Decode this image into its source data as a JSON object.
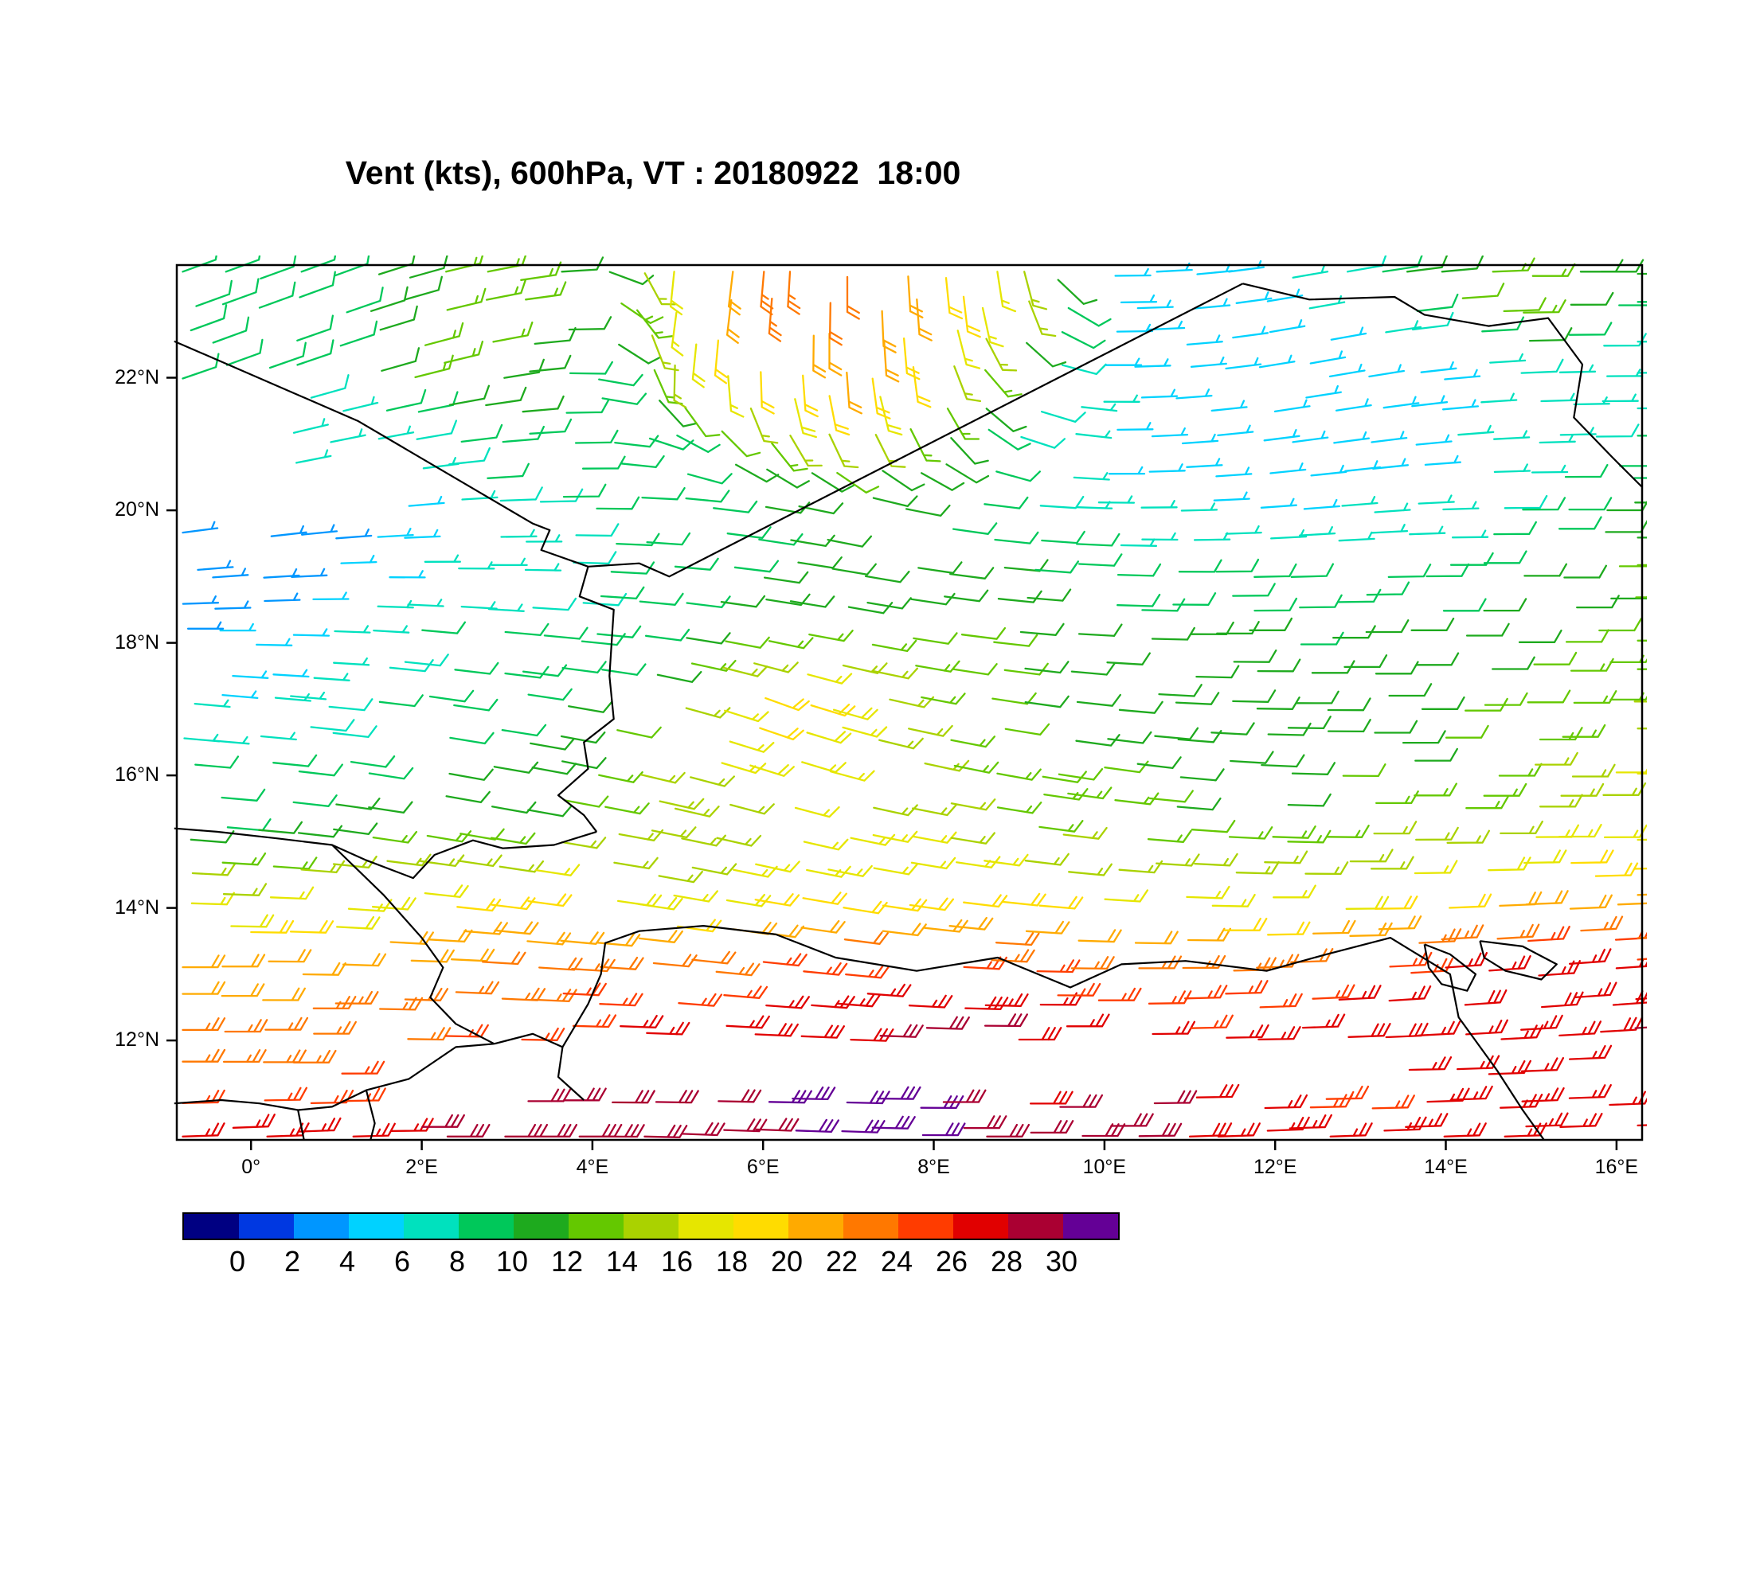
{
  "title": "Vent (kts), 600hPa, VT : 20180922  18:00",
  "chart_data": {
    "type": "wind_barbs",
    "title": "Vent (kts), 600hPa, VT : 20180922  18:00",
    "variable": "Vent",
    "units": "kts",
    "level": "600hPa",
    "valid_time_label": "VT : 20180922  18:00",
    "x_axis": {
      "tick_labels": [
        "0°",
        "2°E",
        "4°E",
        "6°E",
        "8°E",
        "10°E",
        "12°E",
        "14°E",
        "16°E"
      ],
      "tick_lons": [
        0,
        2,
        4,
        6,
        8,
        10,
        12,
        14,
        16
      ],
      "lon_range": [
        -0.87,
        16.3
      ]
    },
    "y_axis": {
      "tick_labels": [
        "12°N",
        "14°N",
        "16°N",
        "18°N",
        "20°N",
        "22°N"
      ],
      "tick_lats": [
        12,
        14,
        16,
        18,
        20,
        22
      ],
      "lat_range": [
        10.5,
        23.7
      ]
    },
    "colorbar": {
      "tick_values": [
        0,
        2,
        4,
        6,
        8,
        10,
        12,
        14,
        16,
        18,
        20,
        22,
        24,
        26,
        28,
        30
      ],
      "segment_colors": [
        "#000082",
        "#0038e1",
        "#0096ff",
        "#00d2ff",
        "#00e1be",
        "#00c85a",
        "#1eaa1e",
        "#64c800",
        "#aad200",
        "#e6e600",
        "#ffdc00",
        "#ffaa00",
        "#ff7800",
        "#ff3c00",
        "#e10000",
        "#aa0032",
        "#640096"
      ]
    },
    "map_border_color": "#000000",
    "wind_field": {
      "lats": [
        23.2,
        22.2,
        21.2,
        20.2,
        19.2,
        18.2,
        17.2,
        16.2,
        15.2,
        14.2,
        13.2,
        12.4,
        11.6,
        10.7
      ],
      "lons": [
        0,
        1,
        2,
        3,
        4,
        5,
        6,
        7,
        8,
        9,
        10,
        11,
        12,
        13,
        14,
        15,
        16
      ],
      "speed_kts": [
        [
          8,
          8,
          12,
          14,
          10,
          18,
          24,
          22,
          20,
          16,
          6,
          4,
          6,
          8,
          12,
          14,
          10
        ],
        [
          8,
          10,
          14,
          12,
          8,
          16,
          20,
          22,
          18,
          10,
          6,
          5,
          4,
          4,
          6,
          8,
          6
        ],
        [
          null,
          6,
          8,
          10,
          8,
          10,
          14,
          16,
          12,
          8,
          6,
          4,
          4,
          5,
          6,
          6,
          8
        ],
        [
          null,
          null,
          6,
          8,
          8,
          8,
          10,
          10,
          10,
          8,
          6,
          6,
          5,
          6,
          6,
          8,
          10
        ],
        [
          3,
          4,
          6,
          6,
          8,
          8,
          10,
          10,
          10,
          10,
          8,
          8,
          8,
          8,
          8,
          10,
          12
        ],
        [
          4,
          6,
          8,
          8,
          8,
          10,
          12,
          12,
          12,
          12,
          10,
          10,
          10,
          10,
          10,
          12,
          12
        ],
        [
          6,
          8,
          8,
          10,
          10,
          14,
          20,
          18,
          12,
          12,
          10,
          10,
          10,
          10,
          12,
          12,
          14
        ],
        [
          8,
          8,
          10,
          10,
          12,
          16,
          18,
          16,
          14,
          12,
          12,
          10,
          10,
          12,
          12,
          14,
          16
        ],
        [
          10,
          12,
          12,
          12,
          14,
          14,
          16,
          16,
          16,
          14,
          14,
          12,
          12,
          14,
          14,
          16,
          16
        ],
        [
          16,
          16,
          18,
          18,
          18,
          16,
          18,
          18,
          18,
          18,
          16,
          16,
          16,
          16,
          18,
          20,
          20
        ],
        [
          20,
          20,
          22,
          22,
          22,
          22,
          24,
          24,
          24,
          24,
          22,
          22,
          22,
          24,
          26,
          26,
          26
        ],
        [
          22,
          24,
          24,
          24,
          26,
          26,
          28,
          28,
          28,
          28,
          26,
          26,
          26,
          28,
          28,
          28,
          28
        ],
        [
          24,
          24,
          null,
          null,
          null,
          null,
          null,
          null,
          null,
          null,
          null,
          null,
          null,
          null,
          26,
          26,
          null
        ],
        [
          26,
          26,
          28,
          28,
          28,
          28,
          30,
          30,
          30,
          28,
          28,
          28,
          26,
          26,
          26,
          26,
          26
        ]
      ],
      "direction_from_deg": [
        [
          70,
          70,
          75,
          80,
          90,
          190,
          185,
          180,
          175,
          170,
          90,
          85,
          80,
          80,
          85,
          90,
          90
        ],
        [
          70,
          72,
          75,
          80,
          95,
          185,
          182,
          178,
          172,
          120,
          90,
          85,
          80,
          80,
          85,
          88,
          90
        ],
        [
          75,
          78,
          80,
          85,
          90,
          120,
          150,
          160,
          150,
          110,
          90,
          85,
          82,
          82,
          85,
          88,
          90
        ],
        [
          80,
          82,
          85,
          88,
          90,
          95,
          100,
          105,
          100,
          95,
          90,
          88,
          85,
          85,
          88,
          90,
          90
        ],
        [
          85,
          88,
          90,
          90,
          92,
          95,
          98,
          100,
          98,
          95,
          92,
          90,
          88,
          88,
          90,
          90,
          90
        ],
        [
          90,
          92,
          95,
          95,
          95,
          98,
          100,
          100,
          98,
          95,
          92,
          90,
          90,
          90,
          90,
          90,
          90
        ],
        [
          95,
          95,
          98,
          98,
          100,
          105,
          110,
          105,
          100,
          98,
          95,
          92,
          90,
          90,
          90,
          90,
          90
        ],
        [
          95,
          98,
          100,
          100,
          102,
          105,
          108,
          105,
          102,
          100,
          98,
          95,
          92,
          90,
          90,
          90,
          90
        ],
        [
          95,
          98,
          100,
          100,
          100,
          102,
          105,
          102,
          100,
          98,
          96,
          94,
          92,
          90,
          90,
          90,
          90
        ],
        [
          92,
          94,
          96,
          98,
          98,
          100,
          100,
          100,
          98,
          96,
          94,
          92,
          90,
          90,
          88,
          88,
          88
        ],
        [
          90,
          92,
          92,
          94,
          94,
          96,
          96,
          96,
          94,
          92,
          90,
          90,
          88,
          88,
          86,
          86,
          86
        ],
        [
          90,
          90,
          92,
          92,
          92,
          94,
          94,
          94,
          92,
          90,
          90,
          88,
          88,
          86,
          86,
          86,
          86
        ],
        [
          90,
          90,
          90,
          90,
          90,
          90,
          90,
          90,
          90,
          90,
          90,
          90,
          90,
          90,
          88,
          88,
          88
        ],
        [
          88,
          88,
          90,
          90,
          90,
          92,
          92,
          92,
          90,
          90,
          90,
          88,
          88,
          88,
          88,
          88,
          88
        ]
      ]
    },
    "map_borders": [
      [
        [
          -0.9,
          22.55
        ],
        [
          1.25,
          21.35
        ],
        [
          3.3,
          19.8
        ],
        [
          3.5,
          19.7
        ],
        [
          3.4,
          19.4
        ],
        [
          3.95,
          19.15
        ]
      ],
      [
        [
          3.95,
          19.15
        ],
        [
          4.55,
          19.2
        ],
        [
          4.9,
          19.0
        ],
        [
          11.62,
          23.42
        ]
      ],
      [
        [
          11.62,
          23.42
        ],
        [
          12.4,
          23.18
        ],
        [
          13.4,
          23.22
        ],
        [
          13.75,
          22.95
        ],
        [
          14.5,
          22.78
        ],
        [
          15.2,
          22.9
        ],
        [
          15.6,
          22.2
        ],
        [
          15.5,
          21.4
        ],
        [
          15.95,
          20.8
        ],
        [
          16.3,
          20.35
        ]
      ],
      [
        [
          3.95,
          19.15
        ],
        [
          3.85,
          18.7
        ],
        [
          4.25,
          18.5
        ],
        [
          4.2,
          17.5
        ],
        [
          4.25,
          16.85
        ],
        [
          3.9,
          16.5
        ],
        [
          3.95,
          16.1
        ],
        [
          3.6,
          15.7
        ],
        [
          3.9,
          15.4
        ],
        [
          4.05,
          15.15
        ]
      ],
      [
        [
          4.05,
          15.15
        ],
        [
          3.55,
          14.95
        ],
        [
          2.95,
          14.9
        ],
        [
          2.6,
          15.02
        ],
        [
          2.15,
          14.8
        ],
        [
          1.9,
          14.45
        ],
        [
          1.35,
          14.72
        ],
        [
          0.95,
          14.95
        ],
        [
          0.3,
          15.05
        ],
        [
          -0.4,
          15.15
        ],
        [
          -0.9,
          15.2
        ]
      ],
      [
        [
          0.95,
          14.95
        ],
        [
          1.55,
          14.2
        ],
        [
          2.0,
          13.55
        ],
        [
          2.25,
          13.1
        ],
        [
          2.1,
          12.65
        ],
        [
          2.4,
          12.25
        ],
        [
          2.85,
          11.95
        ]
      ],
      [
        [
          2.85,
          11.95
        ],
        [
          3.3,
          12.1
        ],
        [
          3.65,
          11.9
        ],
        [
          3.6,
          11.45
        ],
        [
          3.9,
          11.1
        ]
      ],
      [
        [
          3.65,
          11.9
        ],
        [
          3.95,
          12.55
        ],
        [
          4.1,
          13.0
        ],
        [
          4.15,
          13.47
        ],
        [
          4.55,
          13.65
        ],
        [
          5.3,
          13.73
        ],
        [
          6.15,
          13.6
        ],
        [
          6.85,
          13.25
        ],
        [
          7.8,
          13.05
        ],
        [
          8.75,
          13.25
        ],
        [
          9.6,
          12.8
        ],
        [
          10.2,
          13.15
        ],
        [
          10.95,
          13.2
        ],
        [
          11.9,
          13.05
        ],
        [
          12.6,
          13.3
        ],
        [
          13.35,
          13.55
        ],
        [
          13.63,
          13.33
        ]
      ],
      [
        [
          13.63,
          13.33
        ],
        [
          14.05,
          13.0
        ],
        [
          14.15,
          12.35
        ],
        [
          14.6,
          11.55
        ],
        [
          14.9,
          10.95
        ],
        [
          15.15,
          10.5
        ]
      ],
      [
        [
          13.75,
          13.45
        ],
        [
          14.05,
          13.3
        ],
        [
          14.35,
          13.0
        ],
        [
          14.25,
          12.75
        ],
        [
          13.95,
          12.85
        ],
        [
          13.8,
          13.1
        ],
        [
          13.75,
          13.45
        ]
      ],
      [
        [
          14.4,
          13.5
        ],
        [
          14.9,
          13.42
        ],
        [
          15.3,
          13.15
        ],
        [
          15.12,
          12.92
        ],
        [
          14.7,
          13.05
        ],
        [
          14.45,
          13.25
        ],
        [
          14.4,
          13.5
        ]
      ],
      [
        [
          -0.9,
          11.05
        ],
        [
          -0.35,
          11.1
        ],
        [
          0.1,
          11.05
        ],
        [
          0.55,
          10.95
        ],
        [
          0.95,
          11.0
        ],
        [
          1.35,
          11.25
        ],
        [
          1.85,
          11.42
        ],
        [
          2.4,
          11.9
        ],
        [
          2.85,
          11.95
        ]
      ],
      [
        [
          0.55,
          10.95
        ],
        [
          0.62,
          10.5
        ]
      ],
      [
        [
          1.35,
          11.25
        ],
        [
          1.45,
          10.75
        ],
        [
          1.4,
          10.5
        ]
      ]
    ]
  }
}
